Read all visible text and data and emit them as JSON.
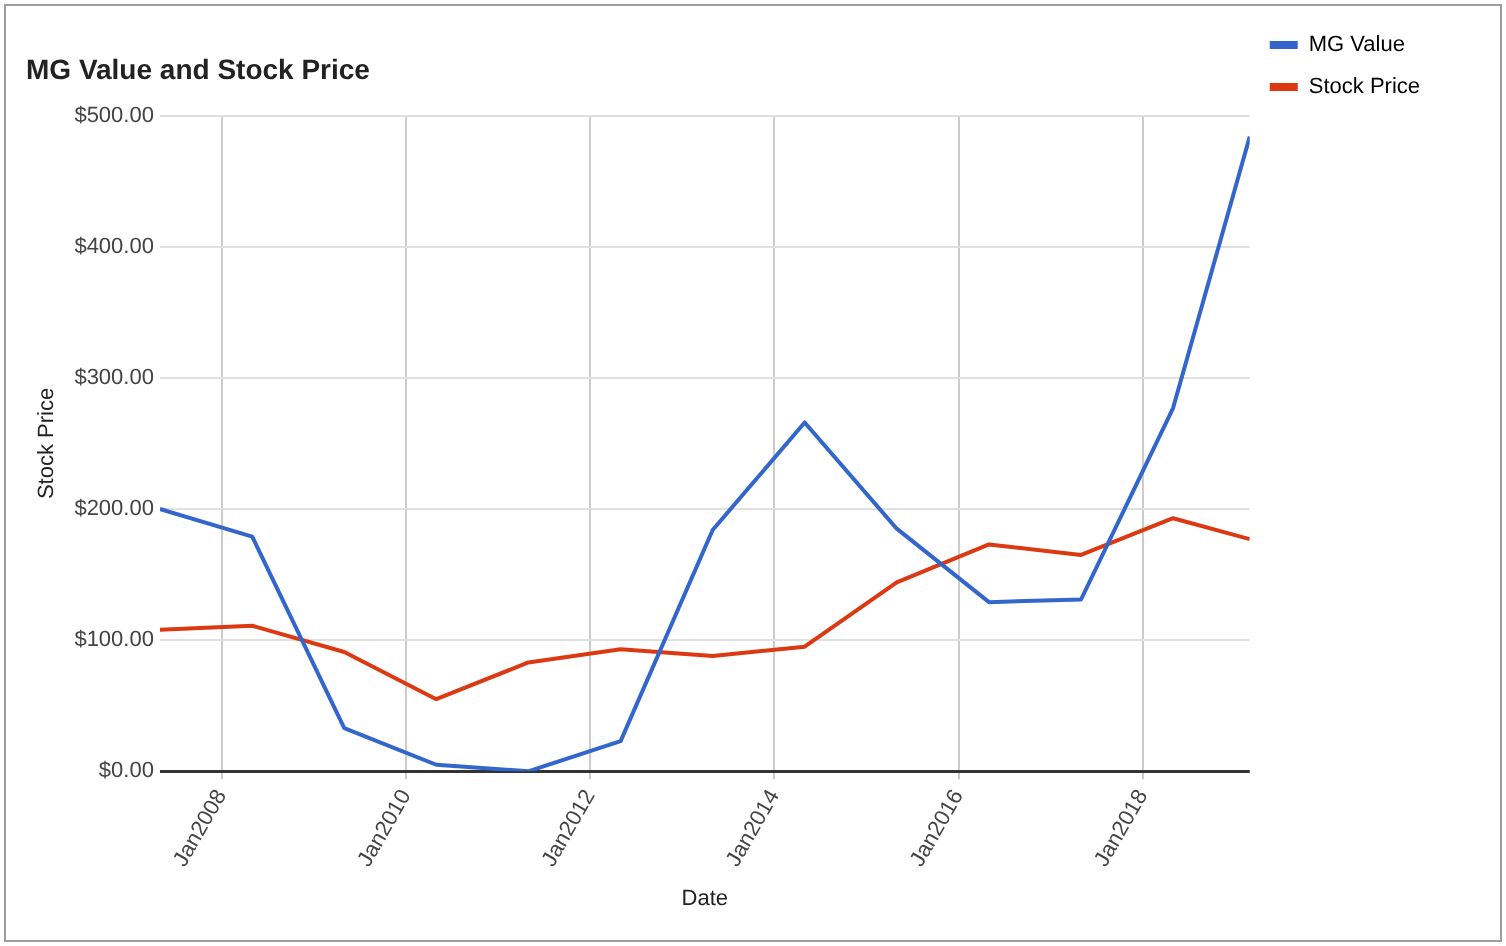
{
  "chart_data": {
    "type": "line",
    "title": "MG Value and Stock Price",
    "xlabel": "Date",
    "ylabel": "Stock Price",
    "x": [
      "2007-05",
      "2008-05",
      "2009-05",
      "2010-05",
      "2011-05",
      "2012-05",
      "2013-05",
      "2014-05",
      "2015-05",
      "2016-05",
      "2017-05",
      "2018-05",
      "2019-03"
    ],
    "series": [
      {
        "name": "MG Value",
        "color": "#3366cc",
        "values": [
          200,
          179,
          33,
          5,
          0,
          23,
          184,
          266,
          185,
          129,
          131,
          277,
          484
        ]
      },
      {
        "name": "Stock Price",
        "color": "#dc3912",
        "values": [
          108,
          111,
          91,
          55,
          83,
          93,
          88,
          95,
          144,
          173,
          165,
          193,
          177
        ]
      }
    ],
    "xlim": [
      "2007-05",
      "2019-03"
    ],
    "xticks": [
      {
        "value": "2008-01",
        "label": "Jan2008"
      },
      {
        "value": "2010-01",
        "label": "Jan2010"
      },
      {
        "value": "2012-01",
        "label": "Jan2012"
      },
      {
        "value": "2014-01",
        "label": "Jan2014"
      },
      {
        "value": "2016-01",
        "label": "Jan2016"
      },
      {
        "value": "2018-01",
        "label": "Jan2018"
      }
    ],
    "ylim": [
      0,
      500
    ],
    "yticks": [
      {
        "value": 0,
        "label": "$0.00"
      },
      {
        "value": 100,
        "label": "$100.00"
      },
      {
        "value": 200,
        "label": "$200.00"
      },
      {
        "value": 300,
        "label": "$300.00"
      },
      {
        "value": 400,
        "label": "$400.00"
      },
      {
        "value": 500,
        "label": "$500.00"
      }
    ],
    "grid": true,
    "legend": "top right",
    "marker": "none",
    "line_style": "solid"
  }
}
